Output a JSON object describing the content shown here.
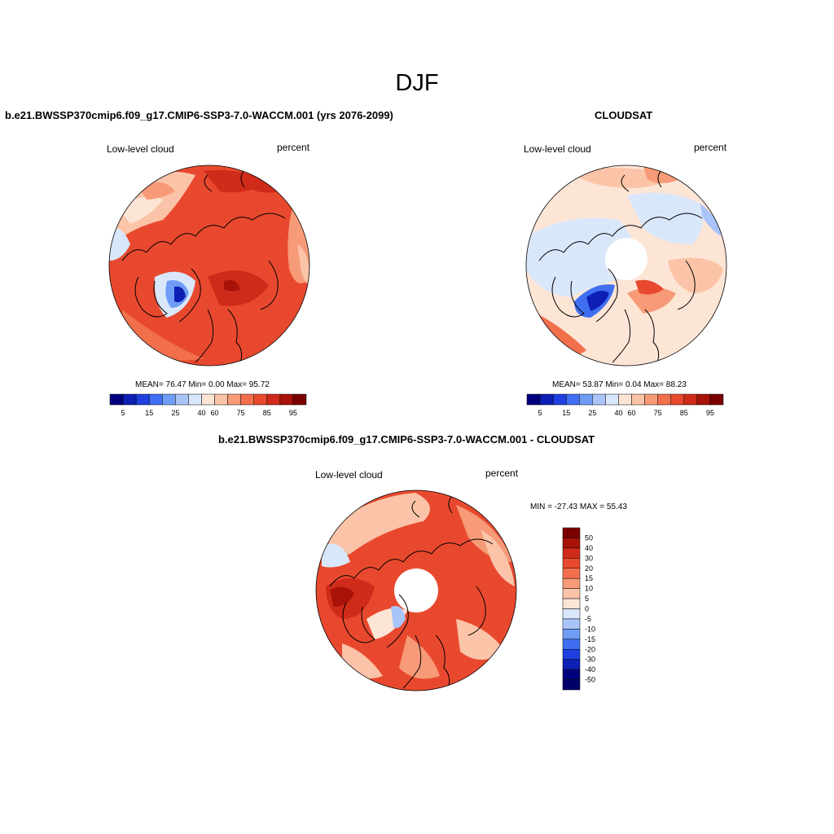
{
  "figure": {
    "title": "DJF"
  },
  "panels": [
    {
      "id": "model",
      "title": "b.e21.BWSSP370cmip6.f09_g17.CMIP6-SSP3-7.0-WACCM.001 (yrs 2076-2099)",
      "left_label": "Low-level cloud",
      "right_label": "percent",
      "stats": "MEAN=  76.47  Min=   0.00  Max=  95.72",
      "mean": 76.47,
      "min": 0.0,
      "max": 95.72,
      "has_polar_hole": false
    },
    {
      "id": "obs",
      "title": "CLOUDSAT",
      "left_label": "Low-level cloud",
      "right_label": "percent",
      "stats": "MEAN=  53.87  Min=   0.04  Max=  88.23",
      "mean": 53.87,
      "min": 0.04,
      "max": 88.23,
      "has_polar_hole": true
    },
    {
      "id": "diff",
      "title": "b.e21.BWSSP370cmip6.f09_g17.CMIP6-SSP3-7.0-WACCM.001 - CLOUDSAT",
      "left_label": "Low-level cloud",
      "right_label": "percent",
      "stats": "MIN = -27.43 MAX =  55.43",
      "min": -27.43,
      "max": 55.43,
      "has_polar_hole": true
    }
  ],
  "colorbar_abs": {
    "labels": [
      "5",
      "15",
      "25",
      "40",
      "60",
      "75",
      "85",
      "95"
    ],
    "colors": [
      "#00007f",
      "#0d1fb5",
      "#1f3fe0",
      "#3f6ff0",
      "#6f9cf5",
      "#a9c4f9",
      "#d9e7fb",
      "#fde5d6",
      "#fbc3a7",
      "#f79a77",
      "#f26f4c",
      "#e8492e",
      "#d02a1a",
      "#a81208",
      "#7a0000"
    ]
  },
  "colorbar_diff": {
    "labels": [
      "50",
      "40",
      "30",
      "20",
      "15",
      "10",
      "5",
      "0",
      "-5",
      "-10",
      "-15",
      "-20",
      "-30",
      "-40",
      "-50"
    ],
    "colors": [
      "#7a0000",
      "#a81208",
      "#d02a1a",
      "#e8492e",
      "#f26f4c",
      "#f79a77",
      "#fbc3a7",
      "#fde5d6",
      "#d9e7fb",
      "#a9c4f9",
      "#6f9cf5",
      "#3f6ff0",
      "#1f3fe0",
      "#0d1fb5",
      "#00007f",
      "#00006a"
    ]
  },
  "colors": {
    "land_outline": "#000000",
    "ocean_bg": "#ffffff"
  }
}
